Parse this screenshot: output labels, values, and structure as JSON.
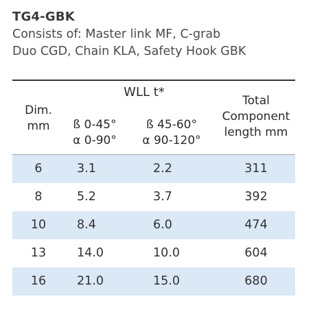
{
  "product": {
    "code": "TG4-GBK",
    "description_lines": [
      "Consists of: Master link MF, C-grab",
      "Duo CGD, Chain KLA, Safety Hook GBK"
    ]
  },
  "table": {
    "group_header": "WLL t*",
    "headers": {
      "dim": [
        "Dim.",
        "mm"
      ],
      "wll_a": [
        "ß 0-45°",
        "α 0-90°"
      ],
      "wll_b": [
        "ß 45-60°",
        "α 90-120°"
      ],
      "length": [
        "Total",
        "Component",
        "length mm"
      ]
    },
    "rows": [
      {
        "dim": "6",
        "wll_a": "3.1",
        "wll_b": "2.2",
        "length": "311"
      },
      {
        "dim": "8",
        "wll_a": "5.2",
        "wll_b": "3.7",
        "length": "392"
      },
      {
        "dim": "10",
        "wll_a": "8.4",
        "wll_b": "6.0",
        "length": "474"
      },
      {
        "dim": "13",
        "wll_a": "14.0",
        "wll_b": "10.0",
        "length": "604"
      },
      {
        "dim": "16",
        "wll_a": "21.0",
        "wll_b": "15.0",
        "length": "680"
      }
    ],
    "shade_color": "#dbe8f6"
  }
}
